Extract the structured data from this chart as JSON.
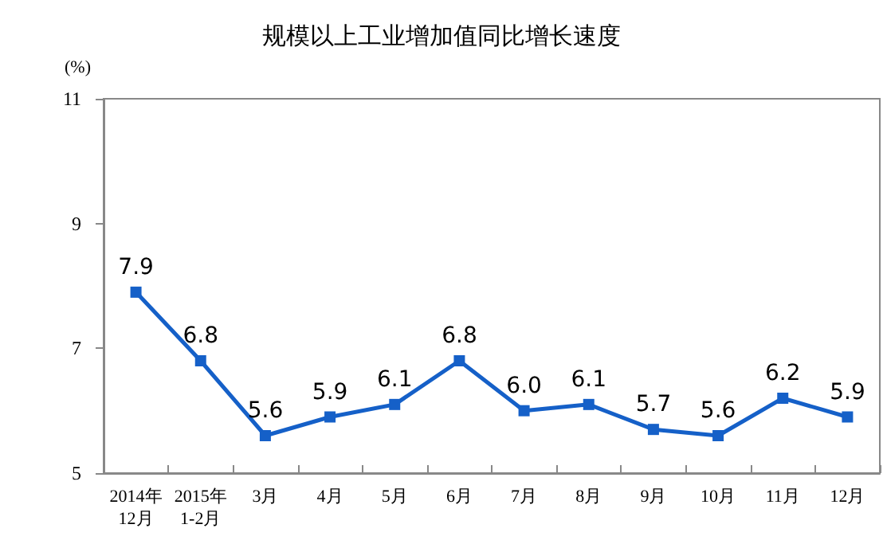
{
  "chart_data": {
    "type": "line",
    "title": "规模以上工业增加值同比增长速度",
    "ylabel": "(%)",
    "categories": [
      "2014年\n12月",
      "2015年\n1-2月",
      "3月",
      "4月",
      "5月",
      "6月",
      "7月",
      "8月",
      "9月",
      "10月",
      "11月",
      "12月"
    ],
    "series": [
      {
        "color": "#1560c8",
        "values": [
          7.9,
          6.8,
          5.6,
          5.9,
          6.1,
          6.8,
          6.0,
          6.1,
          5.7,
          5.6,
          6.2,
          5.9
        ],
        "value_labels": [
          "7.9",
          "6.8",
          "5.6",
          "5.9",
          "6.1",
          "6.8",
          "6.0",
          "6.1",
          "5.7",
          "5.6",
          "6.2",
          "5.9"
        ]
      }
    ],
    "ylim": [
      5,
      11
    ],
    "yticks": [
      5,
      7,
      9,
      11
    ],
    "grid": false,
    "marker": "square",
    "line_style": "solid"
  }
}
